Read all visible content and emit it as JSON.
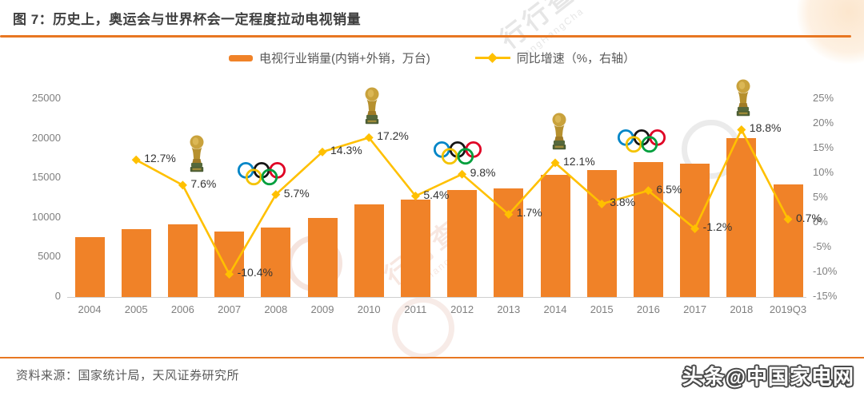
{
  "title": "图 7：历史上，奥运会与世界杯会一定程度拉动电视销量",
  "legend": {
    "bars": {
      "label": "电视行业销量(内销+外销，万台)",
      "color": "#F08228"
    },
    "growth": {
      "label": "同比增速（%，右轴）",
      "color": "#FFC000"
    }
  },
  "chart_data": {
    "type": "bar",
    "title": "图 7：历史上，奥运会与世界杯会一定程度拉动电视销量",
    "categories": [
      "2004",
      "2005",
      "2006",
      "2007",
      "2008",
      "2009",
      "2010",
      "2011",
      "2012",
      "2013",
      "2014",
      "2015",
      "2016",
      "2017",
      "2018",
      "2019Q3"
    ],
    "series": [
      {
        "name": "电视行业销量(内销+外销，万台)",
        "type": "bar",
        "axis": "left",
        "values": [
          7600,
          8560,
          9210,
          8250,
          8720,
          9970,
          11690,
          12320,
          13530,
          13760,
          15420,
          16010,
          17050,
          16850,
          20020,
          14250
        ]
      },
      {
        "name": "同比增速（%，右轴）",
        "type": "line",
        "axis": "right",
        "values": [
          null,
          12.7,
          7.6,
          -10.4,
          5.7,
          14.3,
          17.2,
          5.4,
          9.8,
          1.7,
          12.1,
          3.8,
          6.5,
          -1.2,
          18.8,
          0.7
        ],
        "labels": [
          "",
          "12.7%",
          "7.6%",
          "-10.4%",
          "5.7%",
          "14.3%",
          "17.2%",
          "5.4%",
          "9.8%",
          "1.7%",
          "12.1%",
          "3.8%",
          "6.5%",
          "-1.2%",
          "18.8%",
          "0.7%"
        ]
      }
    ],
    "left_axis": {
      "ticks": [
        "0",
        "5000",
        "10000",
        "15000",
        "20000",
        "25000"
      ],
      "range": [
        0,
        25000
      ]
    },
    "right_axis": {
      "ticks": [
        "-15%",
        "-10%",
        "-5%",
        "0%",
        "5%",
        "10%",
        "15%",
        "20%",
        "25%"
      ],
      "range": [
        -15,
        25
      ]
    },
    "grid": false,
    "legend_position": "top",
    "annotations": {
      "world_cup_years": [
        "2006",
        "2010",
        "2014",
        "2018"
      ],
      "olympic_years": [
        "2008",
        "2012",
        "2016"
      ]
    }
  },
  "footer": {
    "source": "资料来源：国家统计局，天风证券研究所",
    "credit": "头条@中国家电网"
  },
  "watermark": {
    "brand": "行行查",
    "brand_latin": "hangHangCha"
  },
  "colors": {
    "bar": "#F08228",
    "line": "#FFC000",
    "title_text": "#3F3F3F",
    "axis_text": "#7F7F7F",
    "data_label": "#333333",
    "divider": "#E87722"
  }
}
